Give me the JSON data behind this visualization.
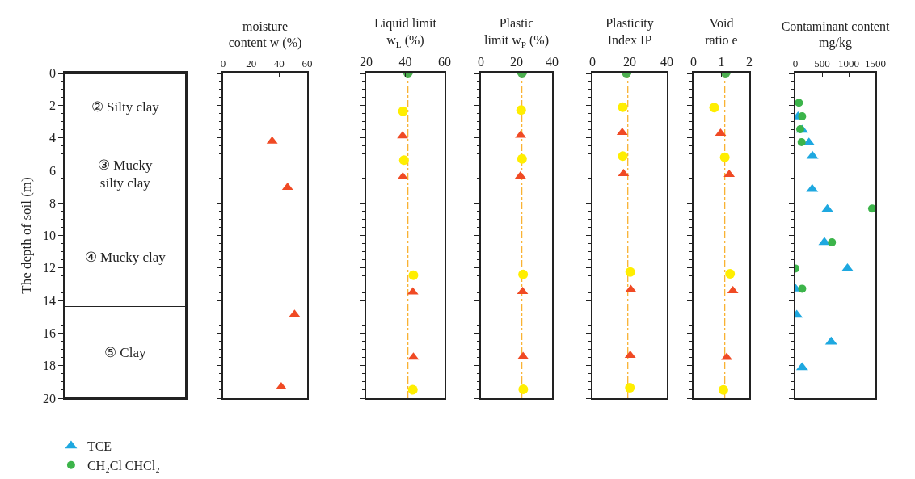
{
  "chart_data": [
    {
      "type": "bar",
      "stacked": true,
      "categories": [
        null
      ],
      "ylabel": "The depth of soil (m)",
      "ylim": [
        20,
        0
      ],
      "yticks": [
        0,
        2,
        4,
        6,
        8,
        10,
        12,
        14,
        16,
        18,
        20
      ],
      "tick_labels": "y",
      "series": [
        {
          "name": "② Silty clay",
          "color": "#ffffff",
          "values": [
            4.2
          ]
        },
        {
          "name": "③ Mucky\nsilty clay",
          "color": "#ffffff",
          "values": [
            4.1
          ]
        },
        {
          "name": "④ Mucky clay",
          "color": "#ffffff",
          "values": [
            6.05
          ]
        },
        {
          "name": "⑤ Clay",
          "color": "#ffffff",
          "values": [
            5.65
          ]
        }
      ]
    },
    {
      "type": "scatter",
      "xlabel": "moisture\ncontent w (%)",
      "xlim": [
        0,
        60
      ],
      "xticks": [
        0,
        20,
        40,
        60
      ],
      "ylim": [
        20,
        0
      ],
      "yticks": [
        0,
        2,
        4,
        6,
        8,
        10,
        12,
        14,
        16,
        18,
        20
      ],
      "tick_labels": "x",
      "series": [
        {
          "color": "#f04a24",
          "marker": "triangle",
          "x": [
            35,
            46,
            51,
            41.5
          ],
          "values": [
            4.2,
            7.05,
            14.85,
            19.3
          ]
        }
      ]
    },
    {
      "type": "scatter",
      "xlabel": "Liquid limit\nw$_{L}$ (%)",
      "xlim": [
        20,
        60
      ],
      "xticks": [
        20,
        40,
        60
      ],
      "ylim": [
        20,
        0
      ],
      "yticks": [
        0,
        2,
        4,
        6,
        8,
        10,
        12,
        14,
        16,
        18,
        20
      ],
      "tick_labels": "x",
      "ref_lines": [
        {
          "axis": "x",
          "value": 41.3,
          "color": "#f9b233",
          "line_style": "dashed"
        }
      ],
      "series": [
        {
          "color": "#ffee00",
          "marker": "circle",
          "x": [
            38.8,
            39.3,
            44.1,
            43.8
          ],
          "values": [
            2.37,
            5.37,
            12.44,
            19.48
          ]
        },
        {
          "color": "#f04a24",
          "marker": "triangle",
          "x": [
            38.6,
            38.7,
            43.8,
            44.1
          ],
          "values": [
            3.88,
            6.4,
            13.48,
            17.48
          ]
        },
        {
          "color": "#4caf50",
          "marker": "circle",
          "x": [
            41.3
          ],
          "values": [
            0
          ]
        }
      ]
    },
    {
      "type": "scatter",
      "xlabel": "Plastic\nlimit w$_{P}$ (%)",
      "xlim": [
        0,
        40
      ],
      "xticks": [
        0,
        20,
        40
      ],
      "ylim": [
        20,
        0
      ],
      "yticks": [
        0,
        2,
        4,
        6,
        8,
        10,
        12,
        14,
        16,
        18,
        20
      ],
      "tick_labels": "x",
      "ref_lines": [
        {
          "axis": "x",
          "value": 23,
          "color": "#f9b233",
          "line_style": "dashed"
        }
      ],
      "series": [
        {
          "color": "#ffee00",
          "marker": "circle",
          "x": [
            22.6,
            23.1,
            23.7,
            23.8
          ],
          "values": [
            2.3,
            5.3,
            12.4,
            19.45
          ]
        },
        {
          "color": "#f04a24",
          "marker": "triangle",
          "x": [
            22.3,
            22.2,
            23.4,
            23.7
          ],
          "values": [
            3.85,
            6.35,
            13.45,
            17.45
          ]
        },
        {
          "color": "#4caf50",
          "marker": "circle",
          "x": [
            23.1
          ],
          "values": [
            0
          ]
        }
      ]
    },
    {
      "type": "scatter",
      "xlabel": "Plasticity\nIndex IP",
      "xlim": [
        0,
        40
      ],
      "xticks": [
        0,
        20,
        40
      ],
      "ylim": [
        20,
        0
      ],
      "yticks": [
        0,
        2,
        4,
        6,
        8,
        10,
        12,
        14,
        16,
        18,
        20
      ],
      "tick_labels": "x",
      "ref_lines": [
        {
          "axis": "x",
          "value": 19,
          "color": "#f9b233",
          "line_style": "dashed"
        }
      ],
      "series": [
        {
          "color": "#ffee00",
          "marker": "circle",
          "x": [
            16.3,
            16.3,
            20.3,
            20.1
          ],
          "values": [
            2.12,
            5.13,
            12.24,
            19.35
          ]
        },
        {
          "color": "#f04a24",
          "marker": "triangle",
          "x": [
            16.0,
            16.7,
            20.6,
            20.3
          ],
          "values": [
            3.67,
            6.2,
            13.32,
            17.37
          ]
        },
        {
          "color": "#4caf50",
          "marker": "circle",
          "x": [
            18.3
          ],
          "values": [
            0
          ]
        }
      ]
    },
    {
      "type": "scatter",
      "xlabel": "Void\nratio e",
      "xlim": [
        0,
        2
      ],
      "xticks": [
        0,
        1,
        2
      ],
      "ylim": [
        20,
        0
      ],
      "yticks": [
        0,
        2,
        4,
        6,
        8,
        10,
        12,
        14,
        16,
        18,
        20
      ],
      "tick_labels": "x",
      "ref_lines": [
        {
          "axis": "x",
          "value": 1.12,
          "color": "#f9b233",
          "line_style": "dashed"
        }
      ],
      "series": [
        {
          "color": "#ffee00",
          "marker": "circle",
          "x": [
            0.74,
            1.12,
            1.31,
            1.07
          ],
          "values": [
            2.15,
            5.2,
            12.36,
            19.49
          ]
        },
        {
          "color": "#f04a24",
          "marker": "triangle",
          "x": [
            0.97,
            1.28,
            1.41,
            1.19
          ],
          "values": [
            3.72,
            6.25,
            13.4,
            17.49
          ]
        },
        {
          "color": "#4caf50",
          "marker": "circle",
          "x": [
            1.15
          ],
          "values": [
            0
          ]
        }
      ]
    },
    {
      "type": "scatter",
      "xlabel": "Contaminant content\nmg/kg",
      "xlim": [
        0,
        1500
      ],
      "xticks": [
        0,
        500,
        1000,
        1500
      ],
      "ylim": [
        20,
        0
      ],
      "yticks": [
        0,
        2,
        4,
        6,
        8,
        10,
        12,
        14,
        16,
        18,
        20
      ],
      "tick_labels": "x",
      "legend": "bottom left",
      "series": [
        {
          "name": "TCE",
          "color": "#1ea8e0",
          "marker": "triangle",
          "x": [
            null,
            50,
            127,
            254,
            320,
            315,
            600,
            545,
            977,
            0,
            25,
            671,
            127
          ],
          "values": [
            null,
            2.7,
            3.52,
            4.3,
            5.13,
            7.16,
            8.4,
            10.42,
            12.03,
            13.28,
            14.89,
            16.54,
            18.11
          ]
        },
        {
          "name": "CH₂Cl CHCl₂",
          "color": "#3cb44a",
          "marker": "circle",
          "x": [
            66,
            127,
            91,
            117,
            1439,
            686,
            0,
            127
          ],
          "values": [
            1.85,
            2.68,
            3.47,
            4.27,
            8.35,
            10.42,
            12.03,
            13.27
          ]
        }
      ]
    }
  ]
}
